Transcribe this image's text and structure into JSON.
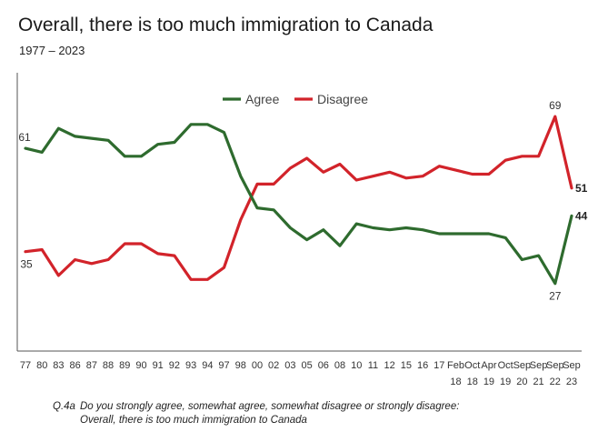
{
  "header": {
    "title": "Overall, there is too much immigration to Canada",
    "subtitle": "1977 – 2023"
  },
  "footnote": {
    "qid": "Q.4a",
    "question": "Do you strongly agree, somewhat agree, somewhat disagree or strongly disagree:",
    "statement": "Overall, there is too much immigration to Canada"
  },
  "colors": {
    "agree": "#2e6b2e",
    "disagree": "#d2232a",
    "axis": "#555555"
  },
  "chart_data": {
    "type": "line",
    "title": "Overall, there is too much immigration to Canada",
    "subtitle": "1977 – 2023",
    "ylim": [
      10,
      80
    ],
    "legend": "top-center",
    "grid": false,
    "categories": [
      [
        "77"
      ],
      [
        "80"
      ],
      [
        "83"
      ],
      [
        "86"
      ],
      [
        "87"
      ],
      [
        "88"
      ],
      [
        "89"
      ],
      [
        "90"
      ],
      [
        "91"
      ],
      [
        "92"
      ],
      [
        "93"
      ],
      [
        "94"
      ],
      [
        "97"
      ],
      [
        "98"
      ],
      [
        "00"
      ],
      [
        "02"
      ],
      [
        "03"
      ],
      [
        "05"
      ],
      [
        "06"
      ],
      [
        "08"
      ],
      [
        "10"
      ],
      [
        "11"
      ],
      [
        "12"
      ],
      [
        "15"
      ],
      [
        "16"
      ],
      [
        "17"
      ],
      [
        "Feb",
        "18"
      ],
      [
        "Oct",
        "18"
      ],
      [
        "Apr",
        "19"
      ],
      [
        "Oct",
        "19"
      ],
      [
        "Sep",
        "20"
      ],
      [
        "Sep",
        "21"
      ],
      [
        "Sep",
        "22"
      ],
      [
        "Sep",
        "23"
      ]
    ],
    "series": [
      {
        "name": "Agree",
        "color": "#2e6b2e",
        "values": [
          61,
          60,
          66,
          64,
          63.5,
          63,
          59,
          59,
          62,
          62.5,
          67,
          67,
          65,
          54,
          46,
          45.5,
          41,
          38,
          40.5,
          36.5,
          42,
          41,
          40.5,
          41,
          40.5,
          39.5,
          39.5,
          39.5,
          39.5,
          38.5,
          33,
          34,
          27,
          44
        ]
      },
      {
        "name": "Disagree",
        "color": "#d2232a",
        "values": [
          35,
          35.5,
          29,
          33,
          32,
          33,
          37,
          37,
          34.5,
          34,
          28,
          28,
          31,
          43,
          52,
          52,
          56,
          58.5,
          55,
          57,
          53,
          54,
          55,
          53.5,
          54,
          56.5,
          55.5,
          54.5,
          54.5,
          58,
          59,
          59,
          69,
          51
        ]
      }
    ],
    "point_labels": [
      {
        "series": "Agree",
        "index": 0,
        "text": "61",
        "pos": "above",
        "bold": false
      },
      {
        "series": "Disagree",
        "index": 0,
        "text": "35",
        "pos": "below",
        "bold": false
      },
      {
        "series": "Disagree",
        "index": 32,
        "text": "69",
        "pos": "above",
        "bold": false
      },
      {
        "series": "Agree",
        "index": 32,
        "text": "27",
        "pos": "below",
        "bold": false
      },
      {
        "series": "Disagree",
        "index": 33,
        "text": "51",
        "pos": "right",
        "bold": true
      },
      {
        "series": "Agree",
        "index": 33,
        "text": "44",
        "pos": "right",
        "bold": true
      }
    ]
  }
}
